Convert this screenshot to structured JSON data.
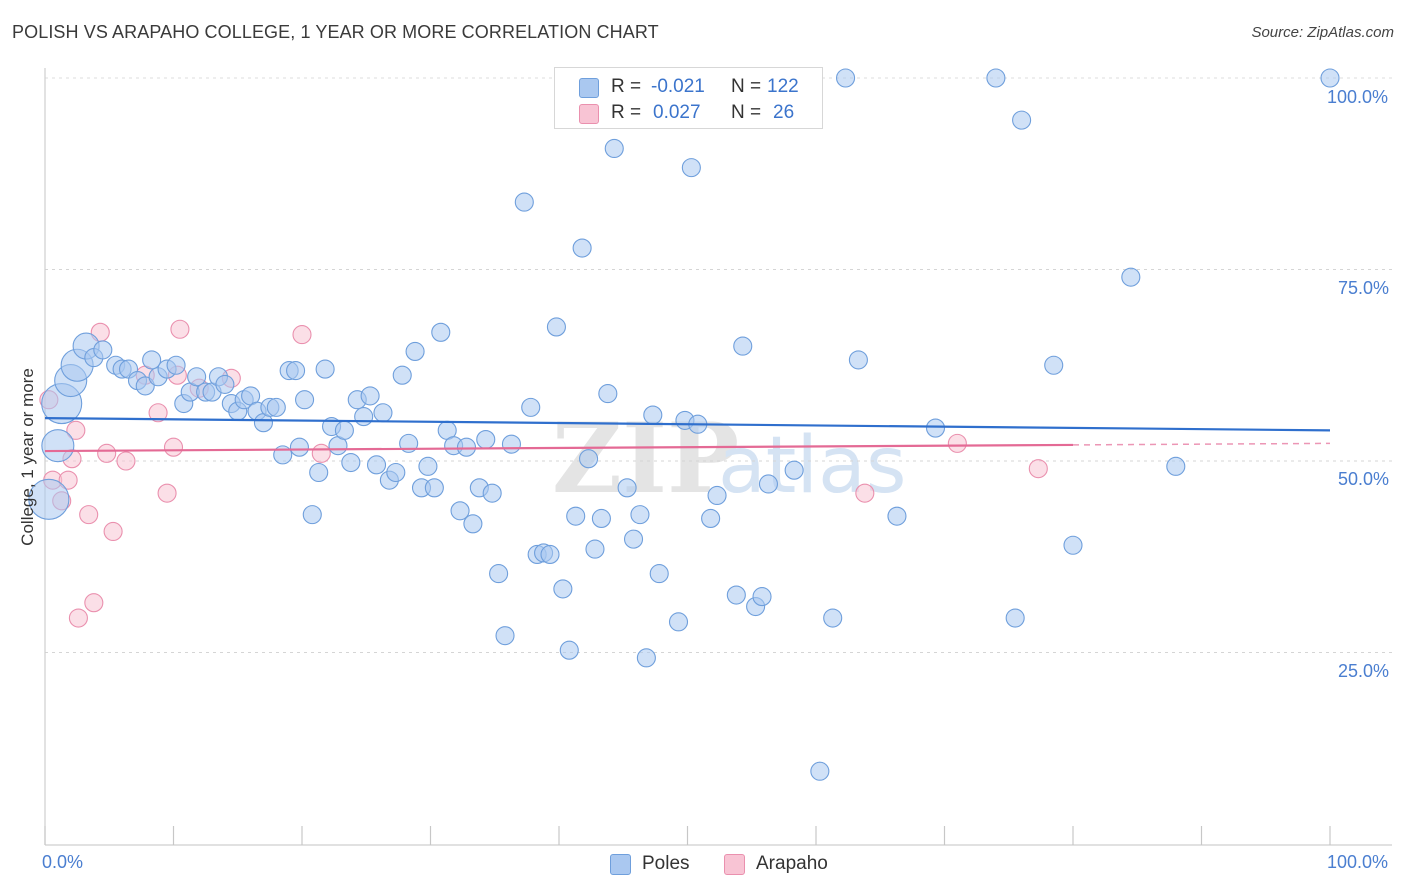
{
  "header": {
    "title": "POLISH VS ARAPAHO COLLEGE, 1 YEAR OR MORE CORRELATION CHART",
    "source": "Source: ZipAtlas.com"
  },
  "legend_top": {
    "row1": {
      "r_label": "R =",
      "r_value": "-0.021",
      "n_label": "N =",
      "n_value": "122"
    },
    "row2": {
      "r_label": "R =",
      "r_value": "0.027",
      "n_label": "N =",
      "n_value": "26"
    }
  },
  "colors": {
    "poles_fill": "#aac8f0",
    "poles_stroke": "#6f9fdc",
    "poles_line": "#2f6fcd",
    "arapaho_fill": "#f8c4d4",
    "arapaho_stroke": "#ea90ae",
    "arapaho_line": "#e46a95",
    "tick_text": "#4a7ed0"
  },
  "chart_data": {
    "type": "scatter",
    "title": "POLISH VS ARAPAHO COLLEGE, 1 YEAR OR MORE CORRELATION CHART",
    "ylabel": "College, 1 year or more",
    "xlim": [
      0,
      100
    ],
    "ylim": [
      2,
      104
    ],
    "x_tick_labels": [
      "0.0%",
      "100.0%"
    ],
    "y_ticks": [
      {
        "value": 25,
        "label": "25.0%"
      },
      {
        "value": 50,
        "label": "50.0%"
      },
      {
        "value": 75,
        "label": "75.0%"
      },
      {
        "value": 100,
        "label": "100.0%"
      }
    ],
    "grid": true,
    "legend_placement": "bottom",
    "series": [
      {
        "name": "Poles",
        "r": -0.021,
        "n": 122,
        "trend": {
          "x0": 0,
          "y0": 55.6,
          "x1": 100,
          "y1": 54.0
        },
        "points": [
          {
            "x": 0.3,
            "y": 45.0,
            "s": 4
          },
          {
            "x": 1.0,
            "y": 52.0,
            "s": 3
          },
          {
            "x": 1.3,
            "y": 57.5,
            "s": 4
          },
          {
            "x": 2.0,
            "y": 60.5,
            "s": 3
          },
          {
            "x": 2.5,
            "y": 62.5,
            "s": 3
          },
          {
            "x": 3.2,
            "y": 65.0,
            "s": 2
          },
          {
            "x": 3.8,
            "y": 63.5,
            "s": 1
          },
          {
            "x": 4.5,
            "y": 64.5,
            "s": 1
          },
          {
            "x": 5.5,
            "y": 62.5,
            "s": 1
          },
          {
            "x": 6.0,
            "y": 62.0,
            "s": 1
          },
          {
            "x": 6.5,
            "y": 62.0,
            "s": 1
          },
          {
            "x": 7.2,
            "y": 60.5,
            "s": 1
          },
          {
            "x": 7.8,
            "y": 59.8,
            "s": 1
          },
          {
            "x": 8.3,
            "y": 63.2,
            "s": 1
          },
          {
            "x": 8.8,
            "y": 61.0,
            "s": 1
          },
          {
            "x": 9.5,
            "y": 62.0,
            "s": 1
          },
          {
            "x": 10.2,
            "y": 62.5,
            "s": 1
          },
          {
            "x": 10.8,
            "y": 57.5,
            "s": 1
          },
          {
            "x": 11.3,
            "y": 59.0,
            "s": 1
          },
          {
            "x": 11.8,
            "y": 61.0,
            "s": 1
          },
          {
            "x": 12.5,
            "y": 59.0,
            "s": 1
          },
          {
            "x": 13.0,
            "y": 59.0,
            "s": 1
          },
          {
            "x": 13.5,
            "y": 61.0,
            "s": 1
          },
          {
            "x": 14.0,
            "y": 60.0,
            "s": 1
          },
          {
            "x": 14.5,
            "y": 57.5,
            "s": 1
          },
          {
            "x": 15.0,
            "y": 56.5,
            "s": 1
          },
          {
            "x": 15.5,
            "y": 58.0,
            "s": 1
          },
          {
            "x": 16.0,
            "y": 58.5,
            "s": 1
          },
          {
            "x": 16.5,
            "y": 56.5,
            "s": 1
          },
          {
            "x": 17.0,
            "y": 55.0,
            "s": 1
          },
          {
            "x": 17.5,
            "y": 57.0,
            "s": 1
          },
          {
            "x": 18.0,
            "y": 57.0,
            "s": 1
          },
          {
            "x": 18.5,
            "y": 50.8,
            "s": 1
          },
          {
            "x": 19.0,
            "y": 61.8,
            "s": 1
          },
          {
            "x": 19.5,
            "y": 61.8,
            "s": 1
          },
          {
            "x": 19.8,
            "y": 51.8,
            "s": 1
          },
          {
            "x": 20.2,
            "y": 58.0,
            "s": 1
          },
          {
            "x": 20.8,
            "y": 43.0,
            "s": 1
          },
          {
            "x": 21.3,
            "y": 48.5,
            "s": 1
          },
          {
            "x": 21.8,
            "y": 62.0,
            "s": 1
          },
          {
            "x": 22.3,
            "y": 54.5,
            "s": 1
          },
          {
            "x": 22.8,
            "y": 52.0,
            "s": 1
          },
          {
            "x": 23.3,
            "y": 54.0,
            "s": 1
          },
          {
            "x": 23.8,
            "y": 49.8,
            "s": 1
          },
          {
            "x": 24.3,
            "y": 58.0,
            "s": 1
          },
          {
            "x": 24.8,
            "y": 55.8,
            "s": 1
          },
          {
            "x": 25.3,
            "y": 58.5,
            "s": 1
          },
          {
            "x": 25.8,
            "y": 49.5,
            "s": 1
          },
          {
            "x": 26.3,
            "y": 56.3,
            "s": 1
          },
          {
            "x": 26.8,
            "y": 47.5,
            "s": 1
          },
          {
            "x": 27.3,
            "y": 48.5,
            "s": 1
          },
          {
            "x": 27.8,
            "y": 61.2,
            "s": 1
          },
          {
            "x": 28.3,
            "y": 52.3,
            "s": 1
          },
          {
            "x": 28.8,
            "y": 64.3,
            "s": 1
          },
          {
            "x": 29.3,
            "y": 46.5,
            "s": 1
          },
          {
            "x": 29.8,
            "y": 49.3,
            "s": 1
          },
          {
            "x": 30.3,
            "y": 46.5,
            "s": 1
          },
          {
            "x": 30.8,
            "y": 66.8,
            "s": 1
          },
          {
            "x": 31.3,
            "y": 54.0,
            "s": 1
          },
          {
            "x": 31.8,
            "y": 52.0,
            "s": 1
          },
          {
            "x": 32.3,
            "y": 43.5,
            "s": 1
          },
          {
            "x": 32.8,
            "y": 51.8,
            "s": 1
          },
          {
            "x": 33.3,
            "y": 41.8,
            "s": 1
          },
          {
            "x": 33.8,
            "y": 46.5,
            "s": 1
          },
          {
            "x": 34.3,
            "y": 52.8,
            "s": 1
          },
          {
            "x": 34.8,
            "y": 45.8,
            "s": 1
          },
          {
            "x": 35.3,
            "y": 35.3,
            "s": 1
          },
          {
            "x": 35.8,
            "y": 27.2,
            "s": 1
          },
          {
            "x": 36.3,
            "y": 52.2,
            "s": 1
          },
          {
            "x": 37.3,
            "y": 83.8,
            "s": 1
          },
          {
            "x": 37.8,
            "y": 57.0,
            "s": 1
          },
          {
            "x": 38.3,
            "y": 37.8,
            "s": 1
          },
          {
            "x": 38.8,
            "y": 38.0,
            "s": 1
          },
          {
            "x": 39.3,
            "y": 37.8,
            "s": 1
          },
          {
            "x": 39.8,
            "y": 67.5,
            "s": 1
          },
          {
            "x": 40.3,
            "y": 33.3,
            "s": 1
          },
          {
            "x": 40.8,
            "y": 25.3,
            "s": 1
          },
          {
            "x": 41.3,
            "y": 42.8,
            "s": 1
          },
          {
            "x": 41.8,
            "y": 77.8,
            "s": 1
          },
          {
            "x": 42.3,
            "y": 50.3,
            "s": 1
          },
          {
            "x": 42.8,
            "y": 38.5,
            "s": 1
          },
          {
            "x": 43.3,
            "y": 42.5,
            "s": 1
          },
          {
            "x": 43.8,
            "y": 58.8,
            "s": 1
          },
          {
            "x": 44.3,
            "y": 90.8,
            "s": 1
          },
          {
            "x": 45.3,
            "y": 46.5,
            "s": 1
          },
          {
            "x": 45.8,
            "y": 39.8,
            "s": 1
          },
          {
            "x": 46.3,
            "y": 43.0,
            "s": 1
          },
          {
            "x": 46.8,
            "y": 24.3,
            "s": 1
          },
          {
            "x": 47.3,
            "y": 56.0,
            "s": 1
          },
          {
            "x": 47.8,
            "y": 35.3,
            "s": 1
          },
          {
            "x": 48.3,
            "y": 100.0,
            "s": 1
          },
          {
            "x": 49.3,
            "y": 29.0,
            "s": 1
          },
          {
            "x": 49.8,
            "y": 55.3,
            "s": 1
          },
          {
            "x": 50.3,
            "y": 88.3,
            "s": 1
          },
          {
            "x": 50.8,
            "y": 54.8,
            "s": 1
          },
          {
            "x": 51.8,
            "y": 42.5,
            "s": 1
          },
          {
            "x": 52.3,
            "y": 45.5,
            "s": 1
          },
          {
            "x": 53.8,
            "y": 32.5,
            "s": 1
          },
          {
            "x": 54.3,
            "y": 65.0,
            "s": 1
          },
          {
            "x": 54.8,
            "y": 100.0,
            "s": 1
          },
          {
            "x": 55.3,
            "y": 31.0,
            "s": 1
          },
          {
            "x": 55.8,
            "y": 32.3,
            "s": 1
          },
          {
            "x": 56.3,
            "y": 47.0,
            "s": 1
          },
          {
            "x": 58.3,
            "y": 48.8,
            "s": 1
          },
          {
            "x": 60.3,
            "y": 9.5,
            "s": 1
          },
          {
            "x": 61.3,
            "y": 29.5,
            "s": 1
          },
          {
            "x": 62.3,
            "y": 100.0,
            "s": 1
          },
          {
            "x": 63.3,
            "y": 63.2,
            "s": 1
          },
          {
            "x": 66.3,
            "y": 42.8,
            "s": 1
          },
          {
            "x": 69.3,
            "y": 54.3,
            "s": 1
          },
          {
            "x": 74.0,
            "y": 100.0,
            "s": 1
          },
          {
            "x": 75.5,
            "y": 29.5,
            "s": 1
          },
          {
            "x": 76.0,
            "y": 94.5,
            "s": 1
          },
          {
            "x": 78.5,
            "y": 62.5,
            "s": 1
          },
          {
            "x": 80.0,
            "y": 39.0,
            "s": 1
          },
          {
            "x": 84.5,
            "y": 74.0,
            "s": 1
          },
          {
            "x": 88.0,
            "y": 49.3,
            "s": 1
          },
          {
            "x": 100.0,
            "y": 100.0,
            "s": 1
          }
        ]
      },
      {
        "name": "Arapaho",
        "r": 0.027,
        "n": 26,
        "trend": {
          "x0": 0,
          "y0": 51.3,
          "x1": 80,
          "y1": 52.1,
          "x_dash_end": 100,
          "y_dash_end": 52.3
        },
        "points": [
          {
            "x": 0.3,
            "y": 58.0,
            "s": 1
          },
          {
            "x": 0.6,
            "y": 47.5,
            "s": 1
          },
          {
            "x": 1.3,
            "y": 44.8,
            "s": 1
          },
          {
            "x": 1.8,
            "y": 47.5,
            "s": 1
          },
          {
            "x": 2.1,
            "y": 50.3,
            "s": 1
          },
          {
            "x": 2.4,
            "y": 54.0,
            "s": 1
          },
          {
            "x": 3.4,
            "y": 43.0,
            "s": 1
          },
          {
            "x": 3.8,
            "y": 31.5,
            "s": 1
          },
          {
            "x": 2.6,
            "y": 29.5,
            "s": 1
          },
          {
            "x": 4.3,
            "y": 66.8,
            "s": 1
          },
          {
            "x": 4.8,
            "y": 51.0,
            "s": 1
          },
          {
            "x": 5.3,
            "y": 40.8,
            "s": 1
          },
          {
            "x": 6.3,
            "y": 50.0,
            "s": 1
          },
          {
            "x": 7.8,
            "y": 61.2,
            "s": 1
          },
          {
            "x": 8.8,
            "y": 56.3,
            "s": 1
          },
          {
            "x": 9.5,
            "y": 45.8,
            "s": 1
          },
          {
            "x": 10.0,
            "y": 51.8,
            "s": 1
          },
          {
            "x": 10.3,
            "y": 61.2,
            "s": 1
          },
          {
            "x": 10.5,
            "y": 67.2,
            "s": 1
          },
          {
            "x": 12.0,
            "y": 59.5,
            "s": 1
          },
          {
            "x": 14.5,
            "y": 60.8,
            "s": 1
          },
          {
            "x": 20.0,
            "y": 66.5,
            "s": 1
          },
          {
            "x": 21.5,
            "y": 51.0,
            "s": 1
          },
          {
            "x": 63.8,
            "y": 45.8,
            "s": 1
          },
          {
            "x": 71.0,
            "y": 52.3,
            "s": 1
          },
          {
            "x": 77.3,
            "y": 49.0,
            "s": 1
          }
        ]
      }
    ]
  },
  "legend_bottom": {
    "poles": "Poles",
    "arapaho": "Arapaho"
  },
  "watermark": {
    "zip": "ZIP",
    "atlas": "atlas"
  }
}
